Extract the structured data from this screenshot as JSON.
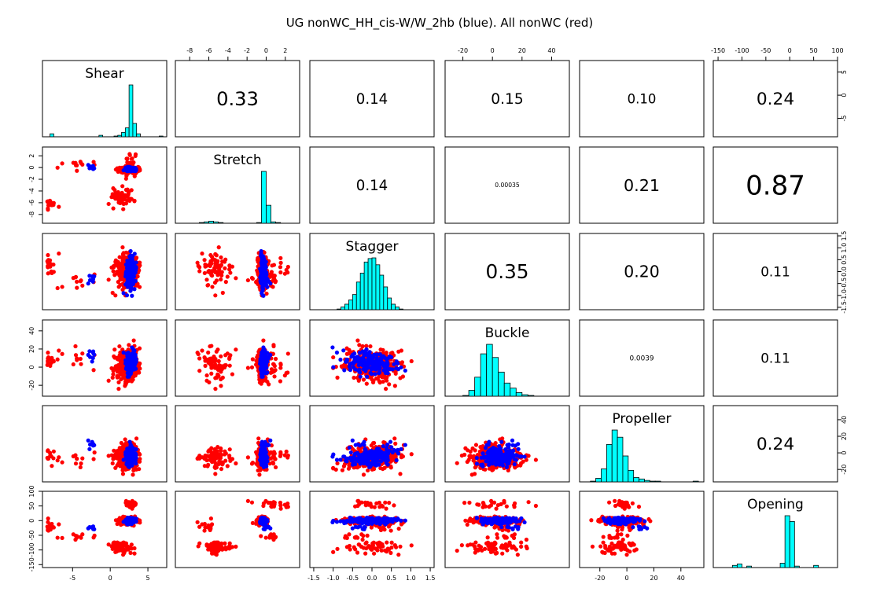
{
  "chart_data": {
    "type": "scatter",
    "title": "UG nonWC_HH_cis-W/W_2hb (blue). All nonWC (red)",
    "variables": [
      "Shear",
      "Stretch",
      "Stagger",
      "Buckle",
      "Propeller",
      "Opening"
    ],
    "ranges": {
      "Shear": [
        -9,
        7.5
      ],
      "Stretch": [
        -9.5,
        3.5
      ],
      "Stagger": [
        -1.6,
        1.6
      ],
      "Buckle": [
        -32,
        52
      ],
      "Propeller": [
        -35,
        57
      ],
      "Opening": [
        -160,
        100
      ]
    },
    "ticks": {
      "Shear": [
        -5,
        0,
        5
      ],
      "Stretch": [
        -8,
        -6,
        -4,
        -2,
        0,
        2
      ],
      "Stagger": [
        -1.5,
        -1.0,
        -0.5,
        0.0,
        0.5,
        1.0,
        1.5
      ],
      "Buckle": [
        -20,
        0,
        20,
        40
      ],
      "Propeller": [
        -20,
        0,
        20,
        40
      ],
      "Opening": [
        -150,
        -100,
        -50,
        0,
        50,
        100
      ]
    },
    "tick_labels": {
      "Shear": [
        "-5",
        "0",
        "5"
      ],
      "Stretch": [
        "-8",
        "-6",
        "-4",
        "-2",
        "0",
        "2"
      ],
      "Stagger": [
        "-1.5",
        "-1.0",
        "-0.5",
        "0.0",
        "0.5",
        "1.0",
        "1.5"
      ],
      "Buckle": [
        "-20",
        "0",
        "20",
        "40"
      ],
      "Propeller": [
        "-20",
        "0",
        "20",
        "40"
      ],
      "Opening": [
        "-150",
        "-100",
        "-50",
        "0",
        "50",
        "100"
      ]
    },
    "correlations": [
      {
        "row": 0,
        "col": 1,
        "label": "0.33",
        "value": 0.33
      },
      {
        "row": 0,
        "col": 2,
        "label": "0.14",
        "value": 0.14
      },
      {
        "row": 0,
        "col": 3,
        "label": "0.15",
        "value": 0.15
      },
      {
        "row": 0,
        "col": 4,
        "label": "0.10",
        "value": 0.1
      },
      {
        "row": 0,
        "col": 5,
        "label": "0.24",
        "value": 0.24
      },
      {
        "row": 1,
        "col": 2,
        "label": "0.14",
        "value": 0.14
      },
      {
        "row": 1,
        "col": 3,
        "label": "0.00035",
        "value": 0.00035
      },
      {
        "row": 1,
        "col": 4,
        "label": "0.21",
        "value": 0.21
      },
      {
        "row": 1,
        "col": 5,
        "label": "0.87",
        "value": 0.87
      },
      {
        "row": 2,
        "col": 3,
        "label": "0.35",
        "value": 0.35
      },
      {
        "row": 2,
        "col": 4,
        "label": "0.20",
        "value": 0.2
      },
      {
        "row": 2,
        "col": 5,
        "label": "0.11",
        "value": 0.11
      },
      {
        "row": 3,
        "col": 4,
        "label": "0.0039",
        "value": 0.0039
      },
      {
        "row": 3,
        "col": 5,
        "label": "0.11",
        "value": 0.11
      },
      {
        "row": 4,
        "col": 5,
        "label": "0.24",
        "value": 0.24
      }
    ],
    "histograms": {
      "Shear": {
        "breaks": [
          -9,
          -8.5,
          -8,
          -7.5,
          -7,
          -6.5,
          -6,
          -5.5,
          -5,
          -4.5,
          -4,
          -3.5,
          -3,
          -2.5,
          -2,
          -1.5,
          -1,
          -0.5,
          0,
          0.5,
          1,
          1.5,
          2,
          2.5,
          3,
          3.5,
          4,
          4.5,
          5,
          5.5,
          6,
          6.5,
          7,
          7.5
        ],
        "counts": [
          0,
          0,
          4,
          0,
          0,
          0,
          0,
          0,
          0,
          0,
          0,
          0,
          0,
          0,
          0,
          2,
          0,
          0,
          0,
          1,
          2,
          6,
          12,
          70,
          18,
          4,
          0,
          0,
          0,
          0,
          0,
          1,
          0
        ]
      },
      "Stretch": {
        "breaks": [
          -9.5,
          -9,
          -8.5,
          -8,
          -7.5,
          -7,
          -6.5,
          -6,
          -5.5,
          -5,
          -4.5,
          -4,
          -3.5,
          -3,
          -2.5,
          -2,
          -1.5,
          -1,
          -0.5,
          0,
          0.5,
          1,
          1.5,
          2,
          2.5,
          3,
          3.5
        ],
        "counts": [
          0,
          0,
          0,
          0,
          0,
          1,
          2,
          3,
          2,
          1,
          0,
          0,
          0,
          0,
          0,
          0,
          0,
          1,
          75,
          26,
          2,
          1,
          0,
          0,
          0,
          0
        ]
      },
      "Stagger": {
        "breaks": [
          -1.6,
          -1.5,
          -1.4,
          -1.3,
          -1.2,
          -1.1,
          -1.0,
          -0.9,
          -0.8,
          -0.7,
          -0.6,
          -0.5,
          -0.4,
          -0.3,
          -0.2,
          -0.1,
          0.0,
          0.1,
          0.2,
          0.3,
          0.4,
          0.5,
          0.6,
          0.7,
          0.8,
          0.9,
          1.0,
          1.1,
          1.2,
          1.3,
          1.4,
          1.5,
          1.6
        ],
        "counts": [
          0,
          0,
          0,
          0,
          0,
          0,
          0,
          1,
          4,
          8,
          14,
          22,
          40,
          53,
          69,
          74,
          75,
          65,
          50,
          33,
          17,
          8,
          4,
          1,
          0,
          0,
          0,
          0,
          0,
          0,
          0,
          0
        ]
      },
      "Buckle": {
        "breaks": [
          -32,
          -28,
          -24,
          -20,
          -16,
          -12,
          -8,
          -4,
          0,
          4,
          8,
          12,
          16,
          20,
          24,
          28,
          32,
          36,
          40,
          44,
          48,
          52
        ],
        "counts": [
          0,
          0,
          0,
          1,
          8,
          26,
          58,
          71,
          53,
          33,
          18,
          11,
          5,
          2,
          1,
          0,
          0,
          0,
          0,
          0,
          0
        ]
      },
      "Propeller": {
        "breaks": [
          -35,
          -31,
          -27,
          -23,
          -19,
          -15,
          -11,
          -7,
          -3,
          1,
          5,
          9,
          13,
          17,
          21,
          25,
          29,
          33,
          37,
          41,
          45,
          49,
          53,
          57
        ],
        "counts": [
          0,
          0,
          1,
          5,
          18,
          52,
          72,
          62,
          36,
          16,
          6,
          4,
          2,
          1,
          1,
          0,
          0,
          0,
          0,
          0,
          0,
          1,
          0
        ]
      },
      "Opening": {
        "breaks": [
          -160,
          -150,
          -140,
          -130,
          -120,
          -110,
          -100,
          -90,
          -80,
          -70,
          -60,
          -50,
          -40,
          -30,
          -20,
          -10,
          0,
          10,
          20,
          30,
          40,
          50,
          60,
          70,
          80,
          90,
          100
        ],
        "counts": [
          0,
          0,
          0,
          0,
          3,
          5,
          0,
          2,
          0,
          0,
          0,
          0,
          0,
          0,
          6,
          72,
          64,
          2,
          0,
          0,
          0,
          3,
          0,
          0,
          0,
          0
        ]
      }
    },
    "series": [
      {
        "name": "All nonWC",
        "color": "#ff0000"
      },
      {
        "name": "UG nonWC_HH_cis-W/W_2hb",
        "color": "#0000ff"
      }
    ],
    "hist_fill": "#00ffff"
  }
}
